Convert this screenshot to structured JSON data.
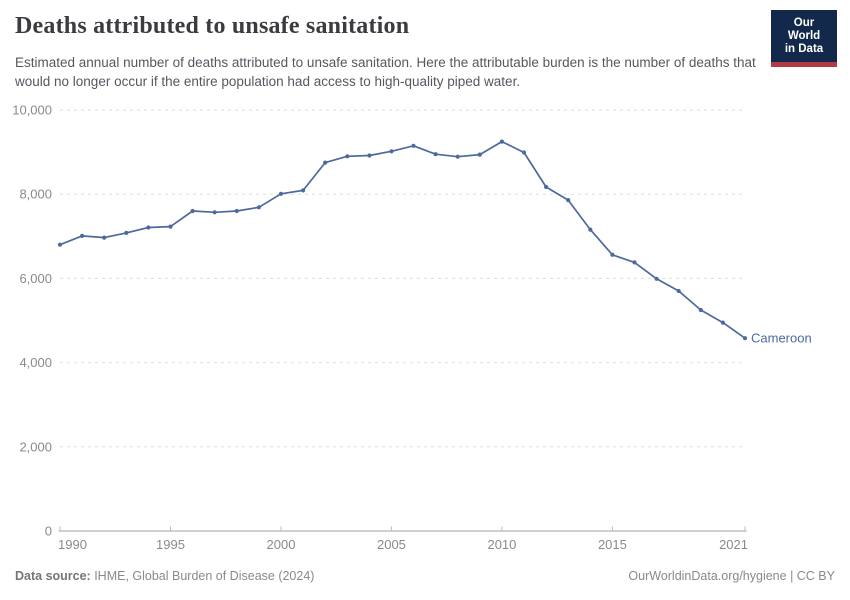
{
  "header": {
    "title": "Deaths attributed to unsafe sanitation",
    "subtitle": "Estimated annual number of deaths attributed to unsafe sanitation. Here the attributable burden is the number of deaths that would no longer occur if the entire population had access to high-quality piped water.",
    "logo": {
      "line1": "Our World",
      "line2": "in Data"
    }
  },
  "chart_data": {
    "type": "line",
    "title": "Deaths attributed to unsafe sanitation",
    "x": [
      1990,
      1991,
      1992,
      1993,
      1994,
      1995,
      1996,
      1997,
      1998,
      1999,
      2000,
      2001,
      2002,
      2003,
      2004,
      2005,
      2006,
      2007,
      2008,
      2009,
      2010,
      2011,
      2012,
      2013,
      2014,
      2015,
      2016,
      2017,
      2018,
      2019,
      2020,
      2021
    ],
    "series": [
      {
        "name": "Cameroon",
        "color": "#4c6a9c",
        "values": [
          6800,
          7010,
          6970,
          7080,
          7210,
          7230,
          7600,
          7570,
          7600,
          7690,
          8010,
          8090,
          8750,
          8900,
          8920,
          9020,
          9150,
          8950,
          8890,
          8940,
          9250,
          8990,
          8170,
          7860,
          7160,
          6560,
          6380,
          5990,
          5700,
          5250,
          4950,
          4580
        ]
      }
    ],
    "xlabel": "",
    "ylabel": "",
    "xlim": [
      1990,
      2021
    ],
    "ylim": [
      0,
      10000
    ],
    "xticks": [
      1990,
      1995,
      2000,
      2005,
      2010,
      2015,
      2021
    ],
    "yticks": [
      0,
      2000,
      4000,
      6000,
      8000,
      10000
    ],
    "ytick_labels": [
      "0",
      "2,000",
      "4,000",
      "6,000",
      "8,000",
      "10,000"
    ],
    "grid": "horizontal-dashed",
    "legend_position": "end-of-line-label",
    "end_label": "Cameroon"
  },
  "footer": {
    "source_label": "Data source:",
    "source_text": " IHME, Global Burden of Disease (2024)",
    "rights": "OurWorldinData.org/hygiene | CC BY"
  },
  "colors": {
    "line": "#4c6a9c",
    "grid": "#dedede",
    "axis": "#a0a0a0",
    "tick_label": "#8a8a8a",
    "title": "#3b3b40",
    "subtitle": "#54595f",
    "logo_bg": "#13294b",
    "logo_accent": "#b03a46"
  }
}
